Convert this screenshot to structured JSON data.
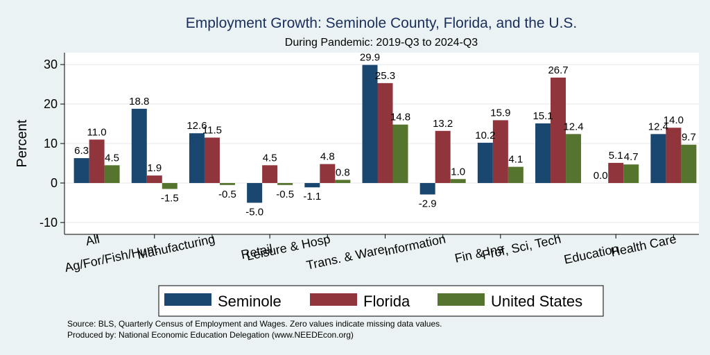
{
  "chart_data": {
    "type": "bar",
    "title": "Employment Growth: Seminole County, Florida, and the U.S.",
    "subtitle": "During Pandemic: 2019-Q3 to 2024-Q3",
    "ylabel": "Percent",
    "xlabel": "",
    "ylim": [
      -13,
      33
    ],
    "yticks": [
      -10,
      0,
      10,
      20,
      30
    ],
    "grid": true,
    "legend_position": "bottom",
    "categories": [
      "All",
      "Ag/For/Fish/Hunt",
      "Manufacturing",
      "Retail",
      "Leisure & Hosp",
      "Trans. & Ware.",
      "Information",
      "Fin & Ins",
      "Prof, Sci, Tech",
      "Education",
      "Health Care"
    ],
    "series": [
      {
        "name": "Seminole",
        "color": "#1a476f",
        "values": [
          6.3,
          18.8,
          12.6,
          -5.0,
          -1.1,
          29.9,
          -2.9,
          10.2,
          15.1,
          0.0,
          12.4
        ]
      },
      {
        "name": "Florida",
        "color": "#90353b",
        "values": [
          11.0,
          1.9,
          11.5,
          4.5,
          4.8,
          25.3,
          13.2,
          15.9,
          26.7,
          5.1,
          14.0
        ]
      },
      {
        "name": "United States",
        "color": "#55752f",
        "values": [
          4.5,
          -1.5,
          -0.5,
          -0.5,
          0.8,
          14.8,
          1.0,
          4.1,
          12.4,
          4.7,
          9.7
        ]
      }
    ]
  },
  "notes": {
    "source": "Source: BLS, Quarterly Census of Employment and Wages. Zero values indicate missing data values.",
    "produced_by": "Produced by: National Economic Education Delegation (www.NEEDEcon.org)"
  }
}
